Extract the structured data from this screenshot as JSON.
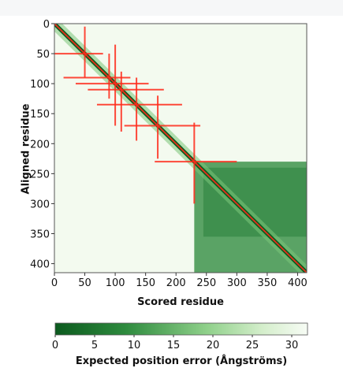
{
  "chart_data": {
    "type": "heatmap",
    "xlabel": "Scored residue",
    "ylabel": "Aligned residue",
    "xlim": [
      0,
      415
    ],
    "ylim": [
      0,
      415
    ],
    "x_ticks": [
      0,
      50,
      100,
      150,
      200,
      250,
      300,
      350,
      400
    ],
    "y_ticks": [
      0,
      50,
      100,
      150,
      200,
      250,
      300,
      350,
      400
    ],
    "colorbar": {
      "label": "Expected position error (Ångströms)",
      "range": [
        0,
        32
      ],
      "ticks": [
        0,
        5,
        10,
        15,
        20,
        25,
        30
      ],
      "low_color": "#0b5a1e",
      "high_color": "#f7fcf5"
    },
    "low_error_regions": [
      {
        "from": 0,
        "to": 415,
        "kind": "diagonal band",
        "pae": 1
      },
      {
        "from": 230,
        "to": 415,
        "kind": "block",
        "pae": 9
      }
    ],
    "contact_crosses": [
      {
        "residue": 50,
        "x_span": [
          0,
          80
        ],
        "y_span": [
          5,
          90
        ]
      },
      {
        "residue": 90,
        "x_span": [
          15,
          125
        ],
        "y_span": [
          50,
          125
        ]
      },
      {
        "residue": 100,
        "x_span": [
          35,
          155
        ],
        "y_span": [
          35,
          170
        ]
      },
      {
        "residue": 110,
        "x_span": [
          55,
          180
        ],
        "y_span": [
          80,
          180
        ]
      },
      {
        "residue": 135,
        "x_span": [
          70,
          210
        ],
        "y_span": [
          90,
          195
        ]
      },
      {
        "residue": 170,
        "x_span": [
          115,
          240
        ],
        "y_span": [
          120,
          225
        ]
      },
      {
        "residue": 230,
        "x_span": [
          165,
          300
        ],
        "y_span": [
          165,
          300
        ]
      }
    ],
    "cross_color": "#ff2a1a",
    "grid": false
  }
}
